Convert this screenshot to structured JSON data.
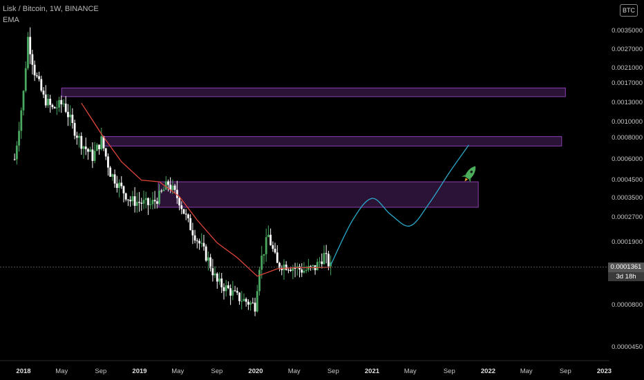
{
  "header": {
    "symbol_line": "Lisk / Bitcoin, 1W, BINANCE",
    "indicator": "EMA"
  },
  "currency_badge": "BTC",
  "price_box": "0.0001361",
  "countdown_box": "3d 18h",
  "colors": {
    "background": "#000000",
    "candle": "#ffffff",
    "ema": "#e0453a",
    "zone_fill": "#3a1a48",
    "zone_border": "#8a3fb0",
    "projection": "#2aa8c8",
    "rocket": "#4cae5a"
  },
  "chart_data": {
    "type": "candlestick",
    "title": "Lisk / Bitcoin, 1W, BINANCE",
    "y_scale": "log",
    "ylim": [
      3.6e-05,
      0.0048
    ],
    "y_ticks": [
      "0.0000450",
      "0.0000800",
      "0.0001361",
      "0.0001900",
      "0.0002700",
      "0.0003500",
      "0.0004500",
      "0.0006000",
      "0.0008000",
      "0.0010000",
      "0.0013000",
      "0.0017000",
      "0.0021000",
      "0.0027000",
      "0.0035000"
    ],
    "x_ticks": [
      "2018",
      "May",
      "Sep",
      "2019",
      "May",
      "Sep",
      "2020",
      "May",
      "Sep",
      "2021",
      "May",
      "Sep",
      "2022",
      "May",
      "Sep",
      "2023"
    ],
    "grid": false,
    "series": [
      {
        "name": "LSKBTC",
        "kind": "close",
        "x": [
          "2017-12-04",
          "2018-01-01",
          "2018-01-15",
          "2018-02-05",
          "2018-03-05",
          "2018-04-02",
          "2018-05-07",
          "2018-06-04",
          "2018-07-02",
          "2018-08-06",
          "2018-09-03",
          "2018-10-01",
          "2018-11-05",
          "2018-12-03",
          "2019-01-07",
          "2019-02-04",
          "2019-03-04",
          "2019-04-01",
          "2019-05-06",
          "2019-06-03",
          "2019-07-01",
          "2019-08-05",
          "2019-09-02",
          "2019-10-07",
          "2019-11-04",
          "2019-12-02",
          "2019-12-30",
          "2020-01-13",
          "2020-02-10",
          "2020-03-09",
          "2020-04-06",
          "2020-05-04",
          "2020-06-01",
          "2020-07-06",
          "2020-08-03",
          "2020-08-24"
        ],
        "values": [
          0.0006,
          0.0015,
          0.0032,
          0.002,
          0.0014,
          0.0012,
          0.0013,
          0.00095,
          0.00075,
          0.00062,
          0.00078,
          0.0005,
          0.0004,
          0.00034,
          0.00033,
          0.00032,
          0.00036,
          0.00043,
          0.00034,
          0.00025,
          0.0002,
          0.00015,
          0.00011,
          0.0001,
          9e-05,
          8.5e-05,
          8e-05,
          0.00014,
          0.00021,
          0.00014,
          0.00014,
          0.000135,
          0.00013,
          0.000135,
          0.00016,
          0.000136
        ]
      },
      {
        "name": "EMA",
        "x": [
          "2018-07-02",
          "2018-09-03",
          "2018-11-05",
          "2019-01-07",
          "2019-03-04",
          "2019-05-06",
          "2019-07-01",
          "2019-09-02",
          "2019-11-04",
          "2020-01-06",
          "2020-03-09",
          "2020-05-04",
          "2020-07-06",
          "2020-08-24"
        ],
        "values": [
          0.0013,
          0.00085,
          0.00058,
          0.00045,
          0.00044,
          0.00036,
          0.00026,
          0.00019,
          0.000155,
          0.00012,
          0.000133,
          0.000135,
          0.000135,
          0.000136
        ]
      },
      {
        "name": "Projection",
        "x": [
          "2020-08-24",
          "2020-11-01",
          "2021-01-01",
          "2021-03-01",
          "2021-05-01",
          "2021-07-01",
          "2021-09-01",
          "2021-11-01"
        ],
        "values": [
          0.00014,
          0.00026,
          0.00035,
          0.00028,
          0.00024,
          0.00033,
          0.0005,
          0.00073
        ]
      }
    ],
    "zones": [
      {
        "from": "2018-05-01",
        "to": "2022-09-01",
        "low": 0.00142,
        "high": 0.0016
      },
      {
        "from": "2018-09-01",
        "to": "2022-08-20",
        "low": 0.00072,
        "high": 0.00082
      },
      {
        "from": "2019-03-01",
        "to": "2021-12-01",
        "low": 0.00031,
        "high": 0.00044
      }
    ]
  }
}
